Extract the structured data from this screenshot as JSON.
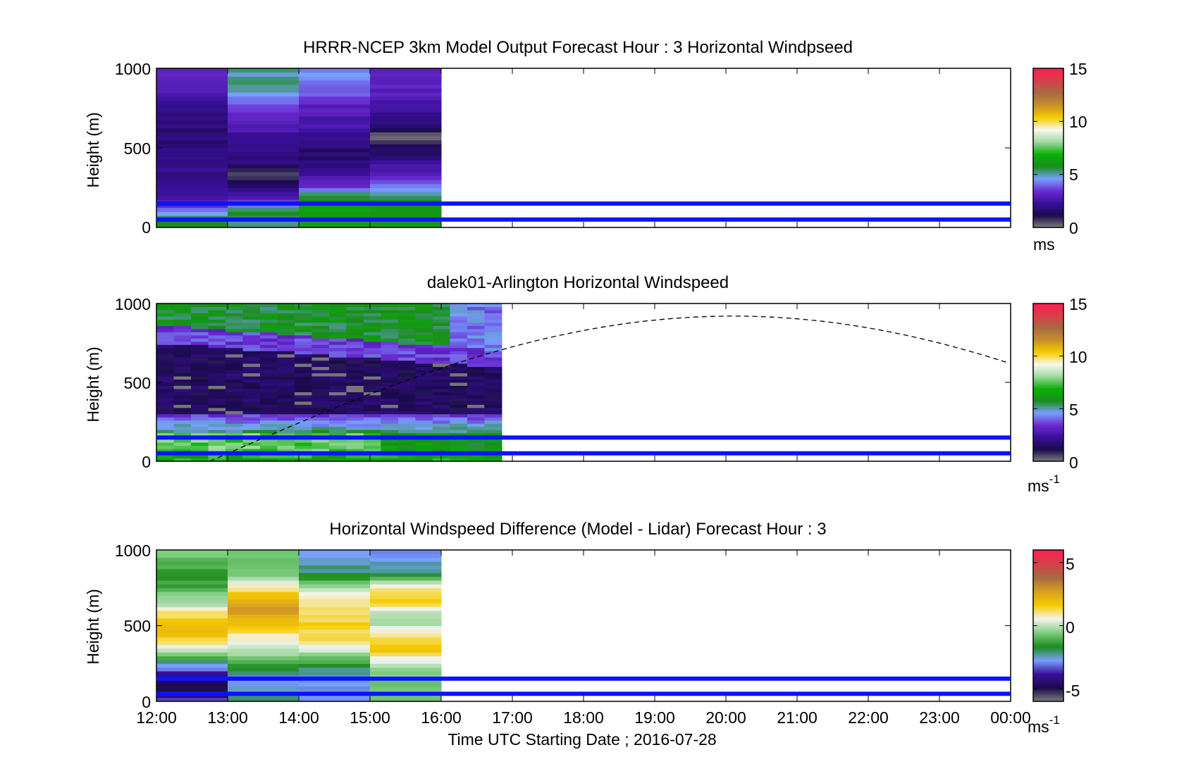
{
  "figure": {
    "xlabel": "Time UTC  Starting Date ; 2016-07-28",
    "x_ticks": [
      "12:00",
      "13:00",
      "14:00",
      "15:00",
      "16:00",
      "17:00",
      "18:00",
      "19:00",
      "20:00",
      "21:00",
      "22:00",
      "23:00",
      "00:00"
    ]
  },
  "chart_data": [
    {
      "type": "heatmap",
      "title": "HRRR-NCEP 3km Model Output   Forecast Hour : 3 Horizontal Windpseed",
      "ylabel": "Height (m)",
      "ylim": [
        0,
        1000
      ],
      "y_ticks": [
        "0",
        "500",
        "1000"
      ],
      "x_range_hours": [
        12,
        24
      ],
      "data_x_hours": [
        12,
        16
      ],
      "columns": 4,
      "colorbar": {
        "ticks": [
          "0",
          "5",
          "10",
          "15"
        ],
        "range": [
          0,
          15
        ],
        "unit": "ms",
        "superscript": ""
      },
      "reference_lines_m": [
        150,
        50
      ],
      "sun_curve": false
    },
    {
      "type": "heatmap",
      "title": "dalek01-Arlington  Horizontal Windspeed",
      "ylabel": "Height (m)",
      "ylim": [
        0,
        1000
      ],
      "y_ticks": [
        "0",
        "500",
        "1000"
      ],
      "x_range_hours": [
        12,
        24
      ],
      "data_x_hours": [
        12,
        16.85
      ],
      "columns": 20,
      "colorbar": {
        "ticks": [
          "0",
          "5",
          "10",
          "15"
        ],
        "range": [
          0,
          15
        ],
        "unit": "ms",
        "superscript": "-1"
      },
      "reference_lines_m": [
        150,
        50
      ],
      "sun_curve": true
    },
    {
      "type": "heatmap",
      "title": "Horizontal Windspeed Difference (Model - Lidar) Forecast Hour : 3",
      "ylabel": "Height (m)",
      "ylim": [
        0,
        1000
      ],
      "y_ticks": [
        "0",
        "500",
        "1000"
      ],
      "x_range_hours": [
        12,
        24
      ],
      "data_x_hours": [
        12,
        16
      ],
      "columns": 4,
      "colorbar": {
        "ticks": [
          "-5",
          "0",
          "5"
        ],
        "range": [
          -6,
          6
        ],
        "unit": "ms",
        "superscript": "-1"
      },
      "reference_lines_m": [
        150,
        50
      ],
      "sun_curve": false
    }
  ],
  "colors": {
    "reference_line": "#0a14ff",
    "speed_colormap": [
      "#7f7f7f",
      "#1a0a4a",
      "#3a0f9a",
      "#6a2ad0",
      "#78a0ff",
      "#1a8c1a",
      "#09b009",
      "#9fd89f",
      "#f8f8f0",
      "#f6cc00",
      "#c8902a",
      "#a86a40",
      "#d4404a",
      "#ff2050"
    ],
    "diff_colormap": [
      "#7f7f7f",
      "#1a0a4a",
      "#3a0f9a",
      "#78a0ff",
      "#1a8c1a",
      "#7ccc7c",
      "#f4f4f0",
      "#f6cc00",
      "#d8a020",
      "#a86a40",
      "#d4404a",
      "#ff2050"
    ]
  }
}
